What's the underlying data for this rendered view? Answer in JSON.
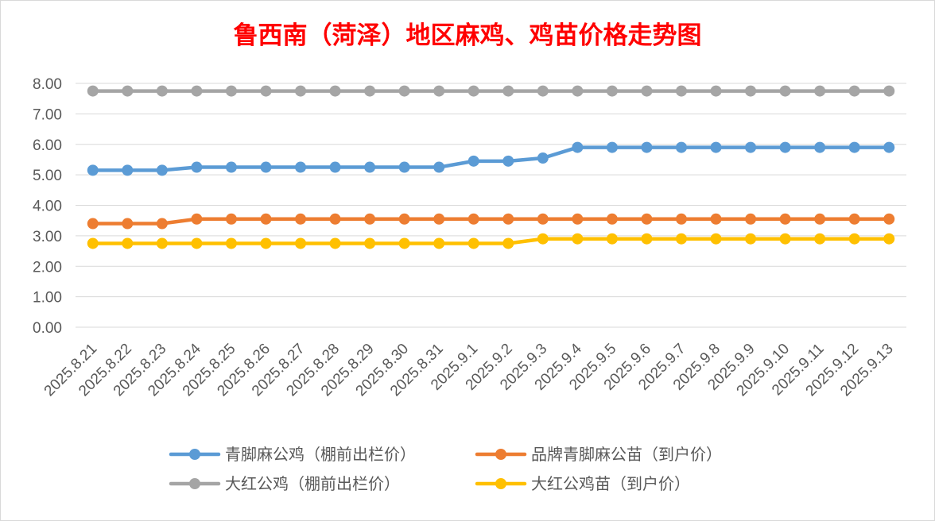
{
  "chart_data": {
    "type": "line",
    "title": "鲁西南（菏泽）地区麻鸡、鸡苗价格走势图",
    "xlabel": "",
    "ylabel": "",
    "ylim": [
      0,
      8
    ],
    "y_ticks": [
      "0.00",
      "1.00",
      "2.00",
      "3.00",
      "4.00",
      "5.00",
      "6.00",
      "7.00",
      "8.00"
    ],
    "grid": true,
    "legend_position": "bottom",
    "categories": [
      "2025.8.21",
      "2025.8.22",
      "2025.8.23",
      "2025.8.24",
      "2025.8.25",
      "2025.8.26",
      "2025.8.27",
      "2025.8.28",
      "2025.8.29",
      "2025.8.30",
      "2025.8.31",
      "2025.9.1",
      "2025.9.2",
      "2025.9.3",
      "2025.9.4",
      "2025.9.5",
      "2025.9.6",
      "2025.9.7",
      "2025.9.8",
      "2025.9.9",
      "2025.9.10",
      "2025.9.11",
      "2025.9.12",
      "2025.9.13"
    ],
    "series": [
      {
        "name": "青脚麻公鸡（棚前出栏价）",
        "color": "#5b9bd5",
        "values": [
          5.15,
          5.15,
          5.15,
          5.25,
          5.25,
          5.25,
          5.25,
          5.25,
          5.25,
          5.25,
          5.25,
          5.45,
          5.45,
          5.55,
          5.9,
          5.9,
          5.9,
          5.9,
          5.9,
          5.9,
          5.9,
          5.9,
          5.9,
          5.9
        ]
      },
      {
        "name": "品牌青脚麻公苗（到户价）",
        "color": "#ed7d31",
        "values": [
          3.4,
          3.4,
          3.4,
          3.55,
          3.55,
          3.55,
          3.55,
          3.55,
          3.55,
          3.55,
          3.55,
          3.55,
          3.55,
          3.55,
          3.55,
          3.55,
          3.55,
          3.55,
          3.55,
          3.55,
          3.55,
          3.55,
          3.55,
          3.55
        ]
      },
      {
        "name": "大红公鸡（棚前出栏价）",
        "color": "#a5a5a5",
        "values": [
          7.75,
          7.75,
          7.75,
          7.75,
          7.75,
          7.75,
          7.75,
          7.75,
          7.75,
          7.75,
          7.75,
          7.75,
          7.75,
          7.75,
          7.75,
          7.75,
          7.75,
          7.75,
          7.75,
          7.75,
          7.75,
          7.75,
          7.75,
          7.75
        ]
      },
      {
        "name": "大红公鸡苗（到户价）",
        "color": "#ffc000",
        "values": [
          2.75,
          2.75,
          2.75,
          2.75,
          2.75,
          2.75,
          2.75,
          2.75,
          2.75,
          2.75,
          2.75,
          2.75,
          2.75,
          2.9,
          2.9,
          2.9,
          2.9,
          2.9,
          2.9,
          2.9,
          2.9,
          2.9,
          2.9,
          2.9
        ]
      }
    ]
  }
}
